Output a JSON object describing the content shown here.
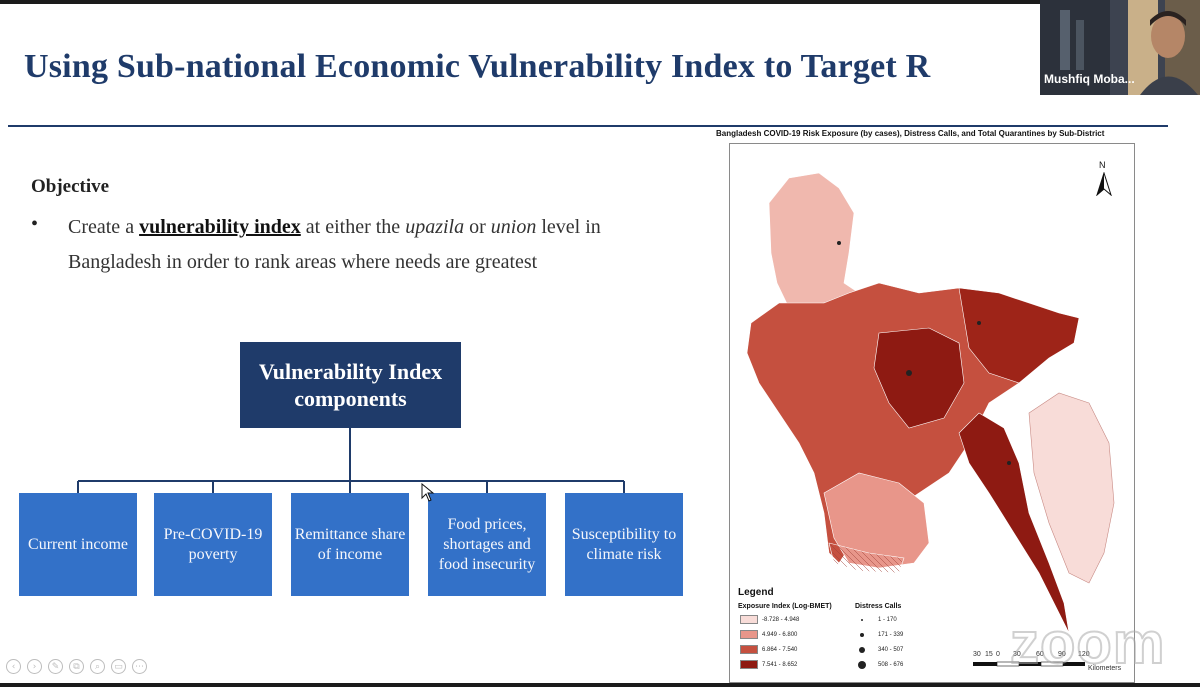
{
  "slide": {
    "title": "Using Sub-national Economic Vulnerability Index to Target R",
    "objective_heading": "Objective",
    "bullet": {
      "before": "Create a ",
      "bold": "vulnerability index",
      "mid1": " at either the ",
      "italic1": "upazila",
      "mid2": " or ",
      "italic2": "union",
      "after": " level in Bangladesh in order to rank areas where needs are greatest"
    },
    "index_box": "Vulnerability Index components",
    "components": [
      "Current income",
      "Pre-COVID-19 poverty",
      "Remittance share of income",
      "Food prices, shortages and food insecurity",
      "Susceptibility to climate risk"
    ],
    "colors": {
      "title": "#1f3b6a",
      "index_box": "#1f3b6a",
      "component_box": "#3371c8"
    }
  },
  "map": {
    "caption": "Bangladesh COVID-19 Risk Exposure (by cases), Distress Calls, and Total Quarantines by Sub-District",
    "north": "N",
    "legend": {
      "title": "Legend",
      "exposure_heading": "Exposure Index (Log-BMET)",
      "calls_heading": "Distress Calls",
      "exposure_classes": [
        {
          "label": "-8.728 - 4.948",
          "color": "#f8dcd8"
        },
        {
          "label": "4.949 - 6.800",
          "color": "#e8968a"
        },
        {
          "label": "6.864 - 7.540",
          "color": "#c5503f"
        },
        {
          "label": "7.541 - 8.652",
          "color": "#8e1a12"
        }
      ],
      "call_classes": [
        "1 - 170",
        "171 - 339",
        "340 - 507",
        "508 - 676"
      ]
    },
    "scale_labels": [
      "30",
      "15",
      "0",
      "30",
      "60",
      "90",
      "120"
    ],
    "scale_unit": "Kilometers"
  },
  "video": {
    "participant_name": "Mushfiq Moba..."
  },
  "watermark": "zoom",
  "toolbar_icons": [
    "previous-icon",
    "next-icon",
    "pen-icon",
    "copy-icon",
    "zoom-icon",
    "slides-icon",
    "more-icon"
  ]
}
